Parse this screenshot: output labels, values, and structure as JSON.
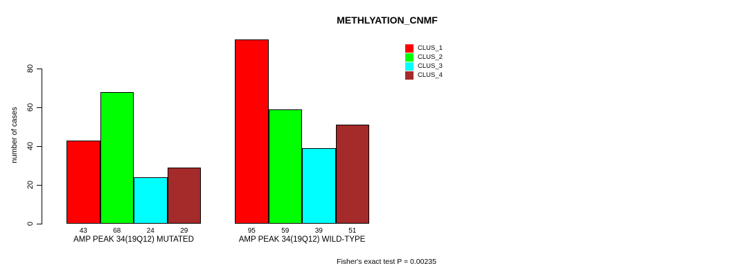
{
  "chart_data": {
    "type": "bar",
    "title": "METHLYATION_CNMF",
    "ylabel": "number of cases",
    "xlabel": "",
    "ylim": [
      0,
      80
    ],
    "yticks": [
      0,
      20,
      40,
      60,
      80
    ],
    "grid": false,
    "legend_position": "top-right",
    "series": [
      {
        "name": "CLUS_1",
        "color": "#FF0000"
      },
      {
        "name": "CLUS_2",
        "color": "#00FF00"
      },
      {
        "name": "CLUS_3",
        "color": "#00FFFF"
      },
      {
        "name": "CLUS_4",
        "color": "#A52A2A"
      }
    ],
    "categories": [
      "AMP PEAK 34(19Q12) MUTATED",
      "AMP PEAK 34(19Q12) WILD-TYPE"
    ],
    "groups": [
      {
        "label": "AMP PEAK 34(19Q12) MUTATED",
        "values": [
          43,
          68,
          24,
          29
        ]
      },
      {
        "label": "AMP PEAK 34(19Q12) WILD-TYPE",
        "values": [
          95,
          59,
          39,
          51
        ]
      }
    ],
    "annotation": "Fisher's exact test P = 0.00235"
  }
}
